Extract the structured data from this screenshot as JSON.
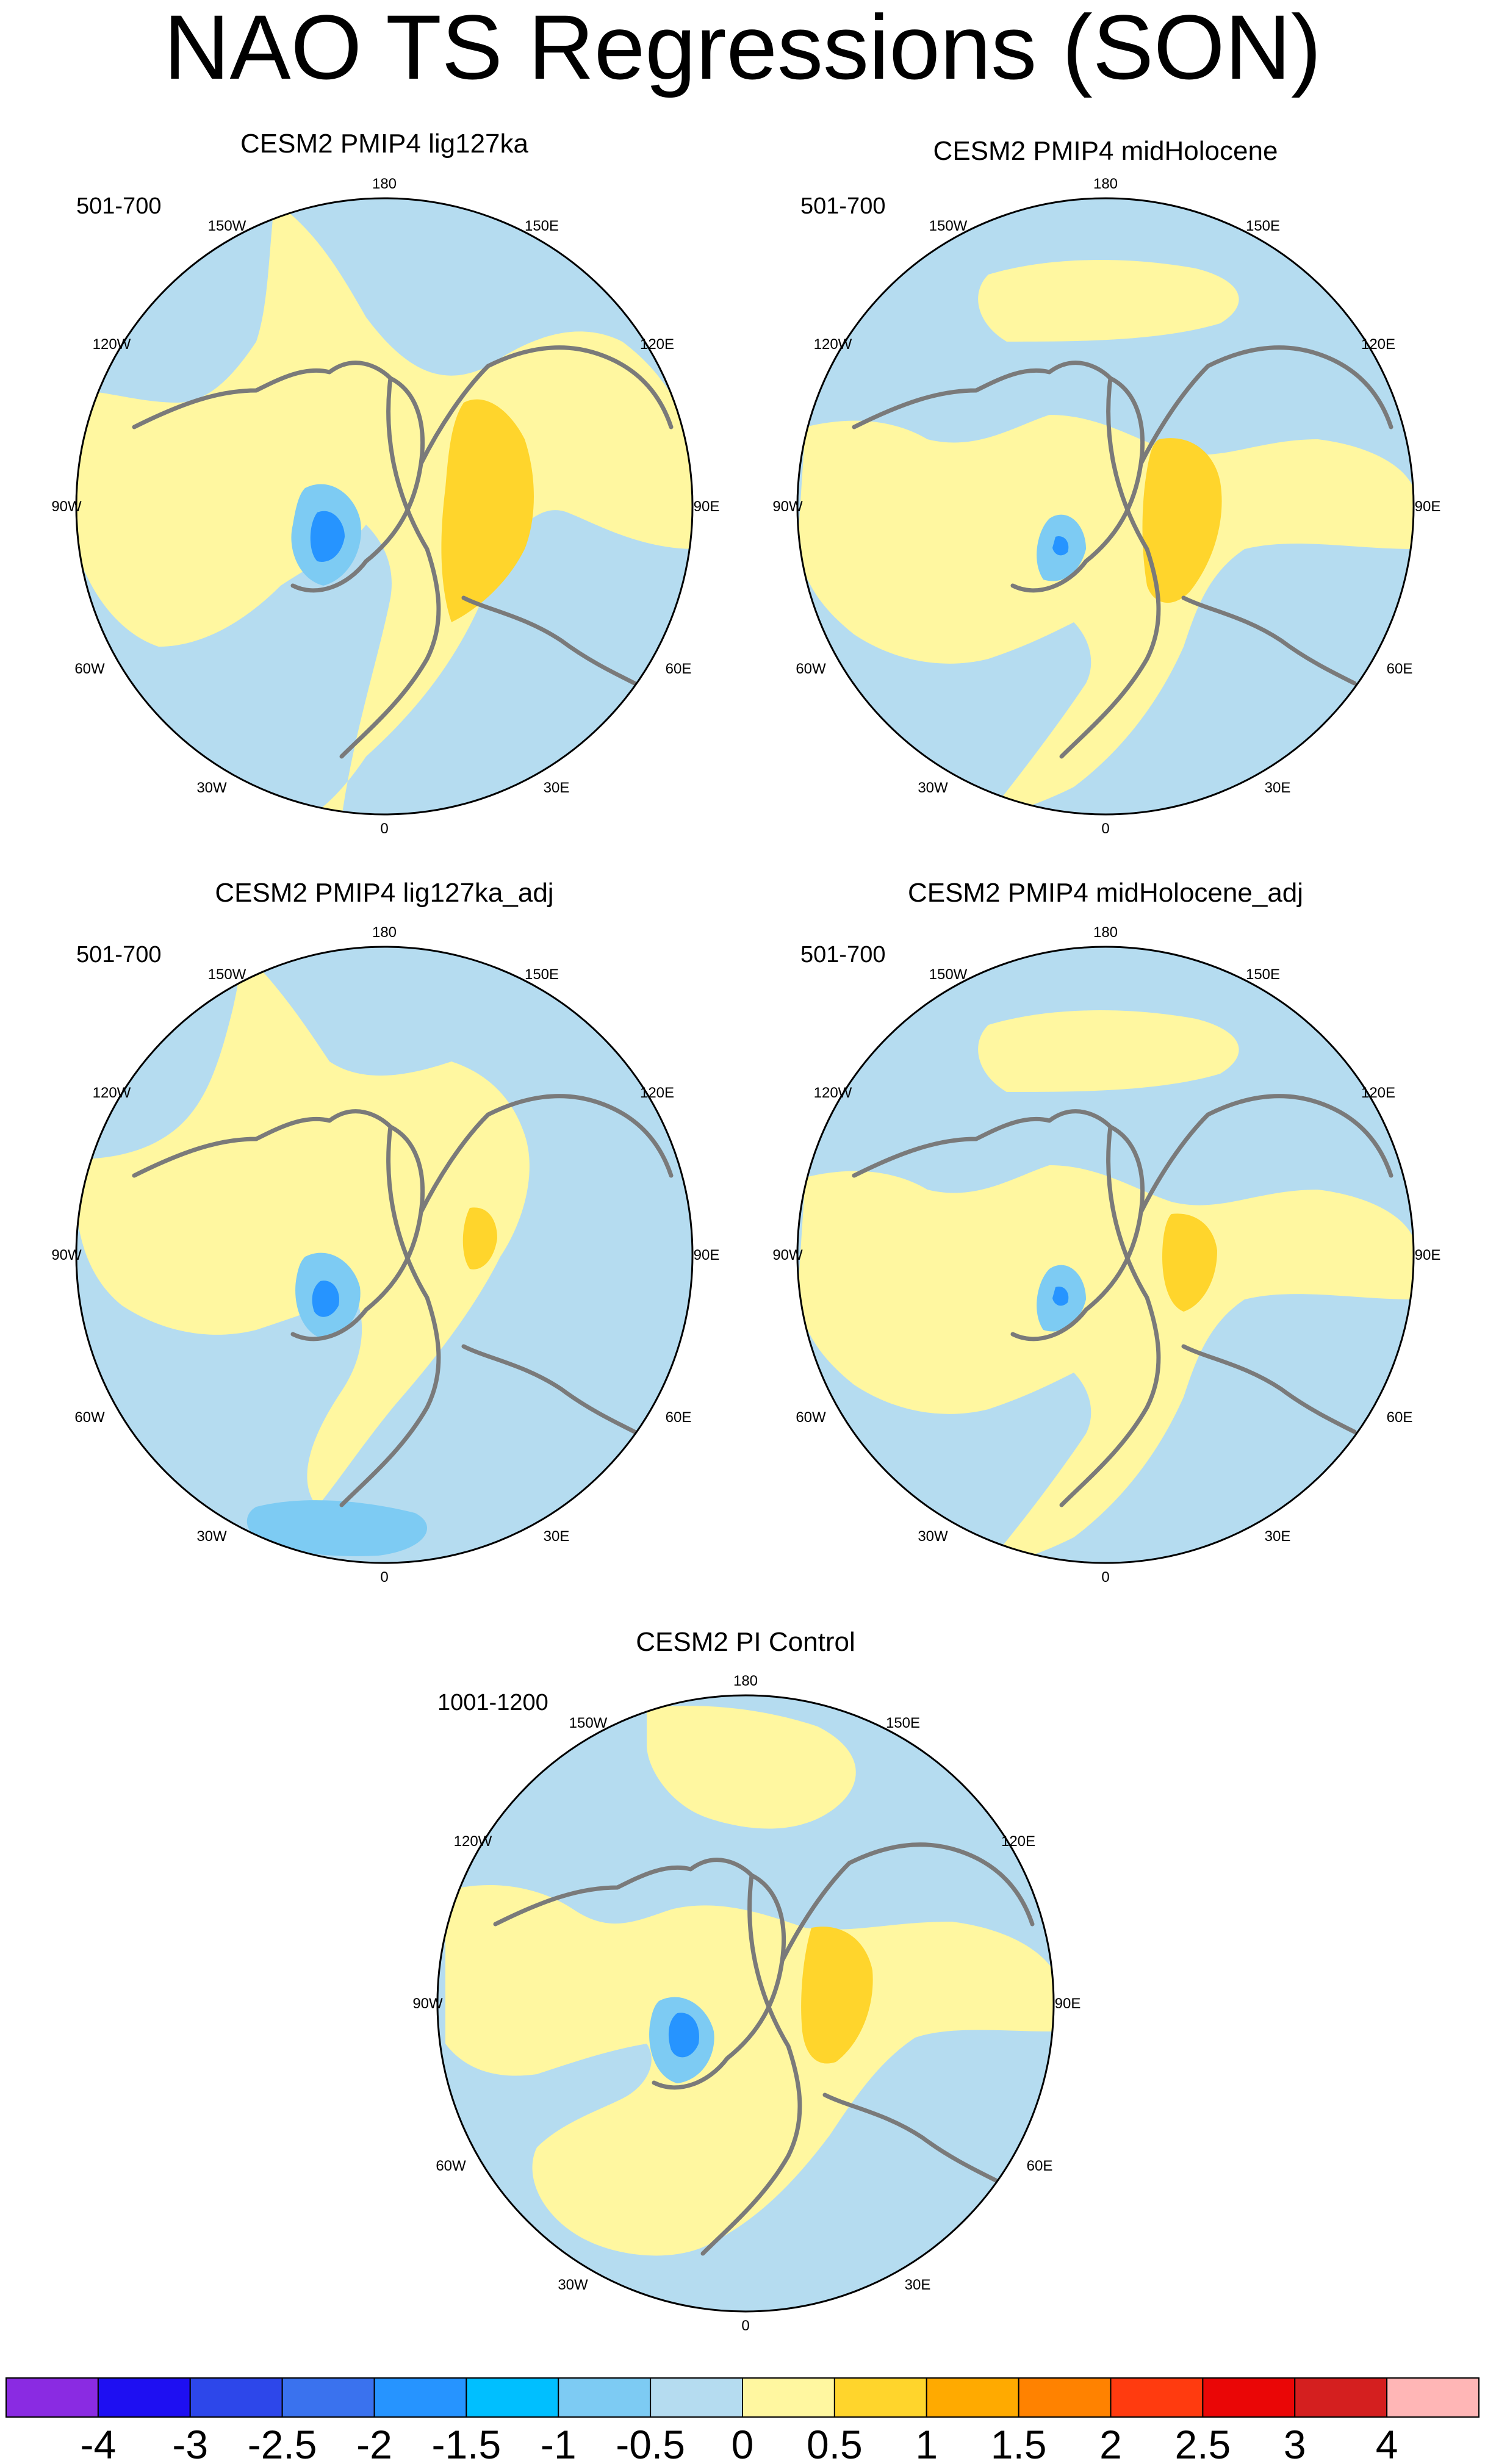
{
  "title": "NAO TS Regressions (SON)",
  "panels": [
    {
      "title": "CESM2 PMIP4 lig127ka",
      "period": "501-700"
    },
    {
      "title": "CESM2 PMIP4 midHolocene",
      "period": "501-700"
    },
    {
      "title": "CESM2 PMIP4 lig127ka_adj",
      "period": "501-700"
    },
    {
      "title": "CESM2 PMIP4 midHolocene_adj",
      "period": "501-700"
    },
    {
      "title": "CESM2 PI Control",
      "period": "1001-1200"
    }
  ],
  "longitude_labels": {
    "top": "180",
    "bottom": "0",
    "left_upper": "150W",
    "left_mid_upper": "120W",
    "left": "90W",
    "left_mid_lower": "60W",
    "left_lower": "30W",
    "right_upper": "150E",
    "right_mid_upper": "120E",
    "right": "90E",
    "right_mid_lower": "60E",
    "right_lower": "30E"
  },
  "colorbar": {
    "colors": [
      "#8a2be2",
      "#1e0ff2",
      "#2d47ea",
      "#3a72ee",
      "#2694ff",
      "#00bfff",
      "#7dcbf3",
      "#b5dcf0",
      "#fff7a0",
      "#ffd52c",
      "#ffaa00",
      "#ff8200",
      "#ff3b0f",
      "#ea0606",
      "#d41f1f",
      "#ffb6b6"
    ],
    "labels": [
      "-4",
      "-3",
      "-2.5",
      "-2",
      "-1.5",
      "-1",
      "-0.5",
      "0",
      "0.5",
      "1",
      "1.5",
      "2",
      "2.5",
      "3",
      "4"
    ]
  },
  "map_colors": {
    "land_outline": "#7a7a7a",
    "negative_weak": "#b5dcf0",
    "positive_weak": "#fff7a0",
    "positive_mid": "#ffd52c",
    "negative_mid": "#7dcbf3",
    "negative_strong": "#2694ff"
  }
}
